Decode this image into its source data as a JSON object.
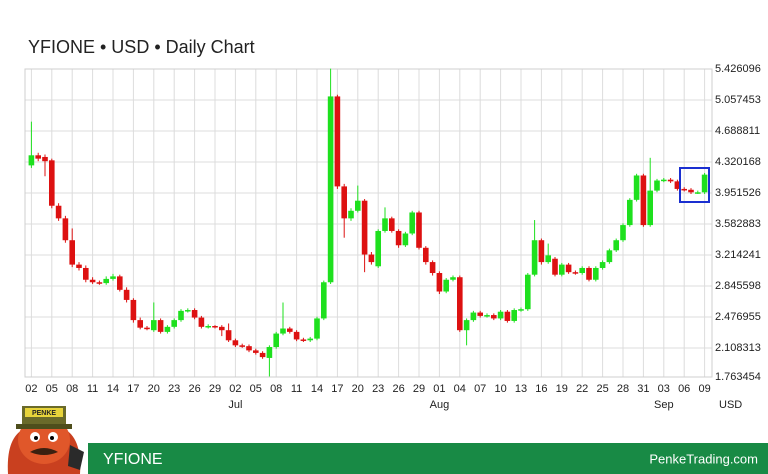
{
  "chart_data": {
    "type": "candlestick",
    "title": "YFIONE • USD • Daily Chart",
    "categories": [
      "02",
      null,
      null,
      "05",
      null,
      null,
      "08",
      null,
      null,
      "11",
      null,
      null,
      "14",
      null,
      null,
      "17",
      null,
      null,
      "20",
      null,
      null,
      "23",
      null,
      null,
      "26",
      null,
      null,
      "29",
      null,
      null,
      "02",
      null,
      null,
      "05",
      null,
      null,
      "08",
      null,
      null,
      "11",
      null,
      null,
      "14",
      null,
      null,
      "17",
      null,
      null,
      "20",
      null,
      null,
      "23",
      null,
      null,
      "26",
      null,
      null,
      "29",
      null,
      null,
      "01",
      null,
      null,
      "04",
      null,
      null,
      "07",
      null,
      null,
      "10",
      null,
      null,
      "13",
      null,
      null,
      "16",
      null,
      null,
      "19",
      null,
      null,
      "22",
      null,
      null,
      "25",
      null,
      null,
      "28",
      null,
      null,
      "31",
      null,
      null,
      "03",
      null,
      null,
      "06",
      null,
      null,
      "09"
    ],
    "month_labels": [
      {
        "label": "Jul",
        "category": 30
      },
      {
        "label": "Aug",
        "category": 60
      },
      {
        "label": "Sep",
        "category": 93
      }
    ],
    "y_unit_label": "USD",
    "series": [
      {
        "name": "YFIONE",
        "up_color": "#1ee01e",
        "down_color": "#dd1111",
        "open": [
          4.28,
          4.4,
          4.38,
          4.34,
          3.8,
          3.65,
          3.39,
          3.1,
          3.06,
          2.92,
          2.89,
          2.88,
          2.93,
          2.96,
          2.8,
          2.68,
          2.44,
          2.35,
          2.32,
          2.44,
          2.3,
          2.36,
          2.44,
          2.55,
          2.56,
          2.47,
          2.36,
          2.37,
          2.36,
          2.32,
          2.2,
          2.14,
          2.13,
          2.08,
          2.05,
          1.99,
          2.12,
          2.28,
          2.34,
          2.3,
          2.21,
          2.2,
          2.22,
          2.46,
          2.89,
          5.1,
          4.03,
          3.65,
          3.74,
          3.86,
          3.22,
          3.08,
          3.5,
          3.65,
          3.5,
          3.33,
          3.47,
          3.72,
          3.3,
          3.13,
          3.0,
          2.78,
          2.92,
          2.95,
          2.32,
          2.44,
          2.53,
          2.49,
          2.5,
          2.46,
          2.54,
          2.43,
          2.56,
          2.57,
          2.98,
          3.39,
          3.13,
          3.17,
          2.98,
          3.1,
          3.01,
          3.0,
          3.06,
          2.92,
          3.06,
          3.13,
          3.27,
          3.39,
          3.57,
          3.87,
          4.16,
          3.57,
          3.98,
          4.1,
          4.11,
          4.09,
          4.0,
          3.99,
          3.96,
          3.96
        ],
        "high": [
          4.8,
          4.43,
          4.41,
          4.36,
          3.83,
          3.68,
          3.53,
          3.13,
          3.09,
          2.95,
          2.91,
          2.96,
          2.99,
          2.98,
          2.83,
          2.7,
          2.47,
          2.37,
          2.65,
          2.46,
          2.38,
          2.46,
          2.57,
          2.58,
          2.58,
          2.49,
          2.39,
          2.38,
          2.38,
          2.4,
          2.22,
          2.16,
          2.15,
          2.1,
          2.07,
          2.14,
          2.3,
          2.65,
          2.36,
          2.32,
          2.23,
          2.24,
          2.48,
          2.91,
          5.43,
          5.12,
          4.06,
          3.77,
          4.04,
          3.88,
          3.25,
          3.52,
          3.78,
          3.67,
          3.52,
          3.49,
          3.74,
          3.74,
          3.32,
          3.15,
          3.02,
          2.94,
          2.97,
          2.97,
          2.46,
          2.55,
          2.55,
          2.52,
          2.52,
          2.56,
          2.56,
          2.58,
          2.59,
          3.0,
          3.63,
          3.41,
          3.35,
          3.19,
          3.12,
          3.12,
          3.03,
          3.08,
          3.08,
          3.08,
          3.15,
          3.29,
          3.41,
          3.59,
          3.89,
          4.18,
          4.18,
          4.37,
          4.12,
          4.13,
          4.13,
          4.11,
          4.02,
          4.01,
          3.98,
          4.19
        ],
        "low": [
          4.25,
          4.33,
          4.15,
          3.77,
          3.62,
          3.36,
          3.07,
          3.03,
          2.89,
          2.87,
          2.86,
          2.86,
          2.91,
          2.78,
          2.65,
          2.41,
          2.33,
          2.32,
          2.3,
          2.28,
          2.28,
          2.34,
          2.42,
          2.53,
          2.45,
          2.34,
          2.34,
          2.34,
          2.25,
          2.18,
          2.12,
          2.11,
          2.06,
          2.03,
          1.98,
          1.77,
          2.1,
          2.26,
          2.28,
          2.19,
          2.18,
          2.18,
          2.2,
          2.44,
          2.87,
          4.0,
          3.42,
          3.62,
          3.72,
          3.01,
          3.1,
          3.06,
          3.48,
          3.48,
          3.3,
          3.31,
          3.45,
          3.28,
          3.1,
          2.97,
          2.75,
          2.76,
          2.9,
          2.3,
          2.14,
          2.42,
          2.47,
          2.47,
          2.44,
          2.44,
          2.41,
          2.41,
          2.54,
          2.55,
          2.96,
          3.1,
          3.11,
          2.96,
          2.96,
          2.99,
          2.98,
          2.98,
          2.9,
          2.9,
          3.04,
          3.11,
          3.25,
          3.37,
          3.55,
          3.85,
          3.55,
          3.55,
          3.96,
          4.08,
          4.07,
          3.98,
          3.97,
          3.94,
          3.94,
          3.94
        ],
        "close": [
          4.4,
          4.36,
          4.33,
          3.8,
          3.65,
          3.39,
          3.1,
          3.06,
          2.92,
          2.89,
          2.88,
          2.93,
          2.96,
          2.8,
          2.68,
          2.44,
          2.35,
          2.34,
          2.44,
          2.3,
          2.36,
          2.44,
          2.55,
          2.56,
          2.47,
          2.36,
          2.37,
          2.36,
          2.32,
          2.2,
          2.14,
          2.13,
          2.08,
          2.05,
          2.0,
          2.12,
          2.28,
          2.34,
          2.3,
          2.21,
          2.2,
          2.22,
          2.46,
          2.89,
          5.1,
          4.03,
          3.65,
          3.74,
          3.86,
          3.22,
          3.13,
          3.5,
          3.65,
          3.5,
          3.33,
          3.47,
          3.72,
          3.3,
          3.13,
          3.0,
          2.78,
          2.92,
          2.95,
          2.32,
          2.44,
          2.53,
          2.49,
          2.5,
          2.46,
          2.54,
          2.43,
          2.56,
          2.57,
          2.98,
          3.39,
          3.13,
          3.21,
          2.98,
          3.1,
          3.01,
          3.0,
          3.06,
          2.92,
          3.06,
          3.13,
          3.27,
          3.39,
          3.57,
          3.87,
          4.16,
          3.57,
          3.98,
          4.1,
          4.11,
          4.09,
          4.0,
          3.99,
          3.96,
          3.96,
          4.17
        ]
      }
    ],
    "ylim": [
      1.763454,
      5.426096
    ],
    "yticks": [
      1.763454,
      2.108313,
      2.476955,
      2.845598,
      3.214241,
      3.582883,
      3.951526,
      4.320168,
      4.688811,
      5.057453,
      5.426096
    ],
    "grid": true
  },
  "footer": {
    "left": "YFIONE",
    "right": "PenkeTrading.com",
    "logo_text": "PENKE"
  }
}
